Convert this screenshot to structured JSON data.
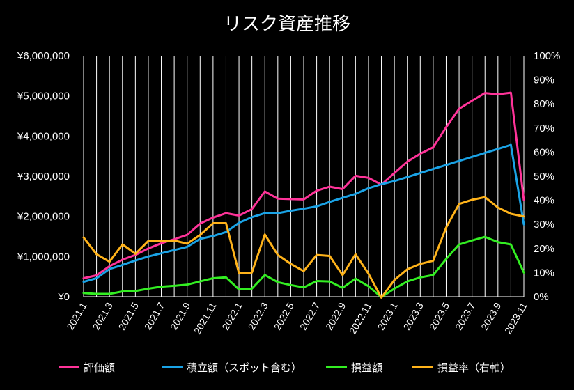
{
  "chart_data": {
    "type": "line",
    "title": "リスク資産推移",
    "y_left": {
      "min": 0,
      "max": 6000000,
      "tick_labels": [
        "¥0",
        "¥1,000,000",
        "¥2,000,000",
        "¥3,000,000",
        "¥4,000,000",
        "¥5,000,000",
        "¥6,000,000"
      ]
    },
    "y_right": {
      "min": 0,
      "max": 100,
      "unit": "%",
      "tick_labels": [
        "0%",
        "10%",
        "20%",
        "30%",
        "40%",
        "50%",
        "60%",
        "70%",
        "80%",
        "90%",
        "100%"
      ]
    },
    "grid": "horizontal-off, vertical-on",
    "legend_position": "bottom",
    "x": [
      "2021.1",
      "2021.2",
      "2021.3",
      "2021.4",
      "2021.5",
      "2021.6",
      "2021.7",
      "2021.8",
      "2021.9",
      "2021.10",
      "2021.11",
      "2021.12",
      "2022.1",
      "2022.2",
      "2022.3",
      "2022.4",
      "2022.5",
      "2022.6",
      "2022.7",
      "2022.8",
      "2022.9",
      "2022.10",
      "2022.11",
      "2022.12",
      "2023.1",
      "2023.2",
      "2023.3",
      "2023.4",
      "2023.5",
      "2023.6",
      "2023.7",
      "2023.8",
      "2023.9",
      "2023.10",
      "2023.11"
    ],
    "x_tick_labels": [
      "2021.1",
      "2021.3",
      "2021.5",
      "2021.7",
      "2021.9",
      "2021.11",
      "2022.1",
      "2022.3",
      "2022.5",
      "2022.7",
      "2022.9",
      "2022.11",
      "2023.1",
      "2023.3",
      "2023.5",
      "2023.7",
      "2023.9",
      "2023.11"
    ],
    "series": [
      {
        "name": "評価額",
        "axis": "left",
        "color": "#ff3399",
        "values": [
          460000,
          530000,
          760000,
          920000,
          1040000,
          1200000,
          1330000,
          1430000,
          1540000,
          1820000,
          1970000,
          2080000,
          2020000,
          2180000,
          2620000,
          2440000,
          2430000,
          2420000,
          2640000,
          2740000,
          2680000,
          3010000,
          2960000,
          2790000,
          3080000,
          3360000,
          3560000,
          3720000,
          4220000,
          4680000,
          4880000,
          5070000,
          5040000,
          5080000,
          2400000
        ]
      },
      {
        "name": "積立額（スポット含む）",
        "axis": "left",
        "color": "#1aa3e6",
        "values": [
          370000,
          460000,
          690000,
          790000,
          900000,
          1000000,
          1080000,
          1160000,
          1240000,
          1440000,
          1510000,
          1610000,
          1840000,
          1980000,
          2080000,
          2080000,
          2140000,
          2190000,
          2250000,
          2360000,
          2460000,
          2560000,
          2700000,
          2800000,
          2880000,
          2980000,
          3080000,
          3180000,
          3280000,
          3380000,
          3480000,
          3580000,
          3680000,
          3780000,
          1800000
        ]
      },
      {
        "name": "損益額",
        "axis": "left",
        "color": "#33ee22",
        "values": [
          90000,
          70000,
          70000,
          130000,
          140000,
          200000,
          250000,
          270000,
          300000,
          380000,
          460000,
          480000,
          180000,
          200000,
          540000,
          360000,
          290000,
          230000,
          390000,
          380000,
          220000,
          450000,
          260000,
          -10000,
          200000,
          380000,
          480000,
          540000,
          940000,
          1300000,
          1400000,
          1490000,
          1360000,
          1300000,
          600000
        ]
      },
      {
        "name": "損益率（右軸）",
        "axis": "right",
        "color": "#ffb31a",
        "values": [
          24.6,
          17.6,
          14.5,
          21.7,
          17.8,
          23.1,
          23.1,
          23.3,
          22.0,
          25.6,
          30.5,
          30.5,
          9.7,
          10.0,
          25.8,
          17.3,
          13.6,
          10.6,
          17.3,
          16.9,
          9.0,
          17.6,
          9.6,
          -0.4,
          6.9,
          11.4,
          13.6,
          14.9,
          28.7,
          38.5,
          40.2,
          41.3,
          37.0,
          34.4,
          33.3
        ]
      }
    ]
  }
}
